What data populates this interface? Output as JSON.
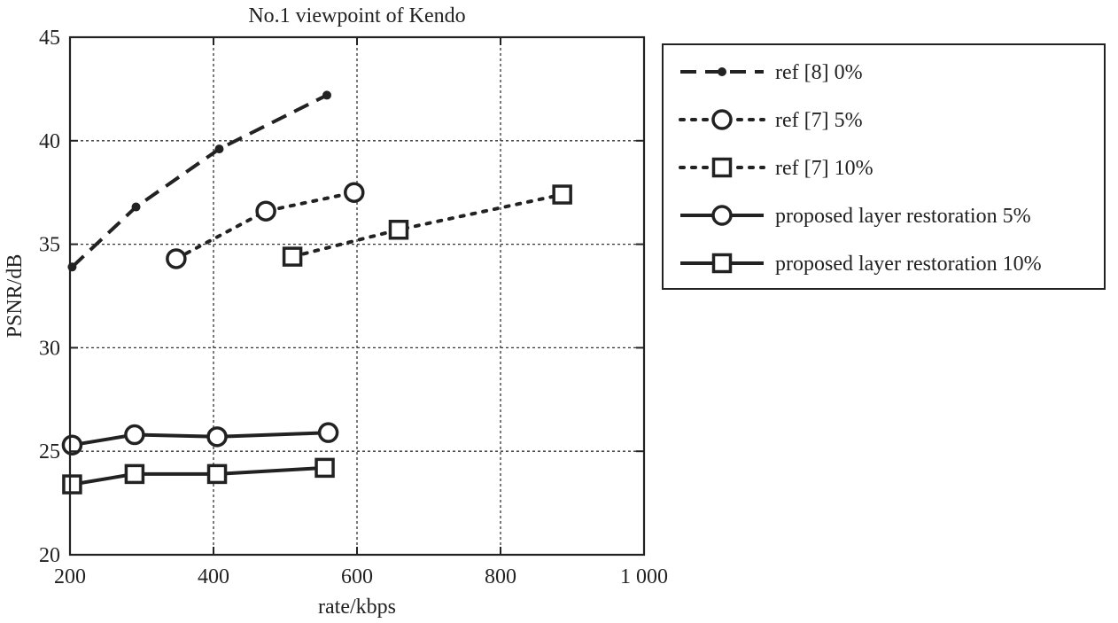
{
  "chart_data": {
    "type": "line",
    "title": "No.1 viewpoint of Kendo",
    "xlabel": "rate/kbps",
    "ylabel": "PSNR/dB",
    "xlim": [
      200,
      1000
    ],
    "ylim": [
      20,
      45
    ],
    "xticks": [
      200,
      400,
      600,
      800,
      1000
    ],
    "xtick_labels": [
      "200",
      "400",
      "600",
      "800",
      "1 000"
    ],
    "yticks": [
      20,
      25,
      30,
      35,
      40,
      45
    ],
    "ytick_labels": [
      "20",
      "25",
      "30",
      "35",
      "40",
      "45"
    ],
    "grid": true,
    "legend_position": "outside-right",
    "series": [
      {
        "name": "ref [8] 0%",
        "line_style": "dashed",
        "marker": "dot",
        "x": [
          203,
          292,
          408,
          558
        ],
        "y": [
          33.9,
          36.8,
          39.6,
          42.2
        ]
      },
      {
        "name": "ref [7] 5%",
        "line_style": "dotted",
        "marker": "circle",
        "x": [
          348,
          473,
          596
        ],
        "y": [
          34.3,
          36.6,
          37.5
        ]
      },
      {
        "name": "ref [7] 10%",
        "line_style": "dotted",
        "marker": "square",
        "x": [
          510,
          658,
          886
        ],
        "y": [
          34.4,
          35.7,
          37.4
        ]
      },
      {
        "name": "proposed layer restoration 5%",
        "line_style": "solid",
        "marker": "circle",
        "x": [
          203,
          290,
          405,
          560
        ],
        "y": [
          25.3,
          25.8,
          25.7,
          25.9
        ]
      },
      {
        "name": "proposed layer restoration 10%",
        "line_style": "solid",
        "marker": "square",
        "x": [
          203,
          290,
          405,
          555
        ],
        "y": [
          23.4,
          23.9,
          23.9,
          24.2
        ]
      }
    ],
    "colors": {
      "ink": "#222222",
      "grid": "#333333",
      "background": "#ffffff"
    }
  }
}
